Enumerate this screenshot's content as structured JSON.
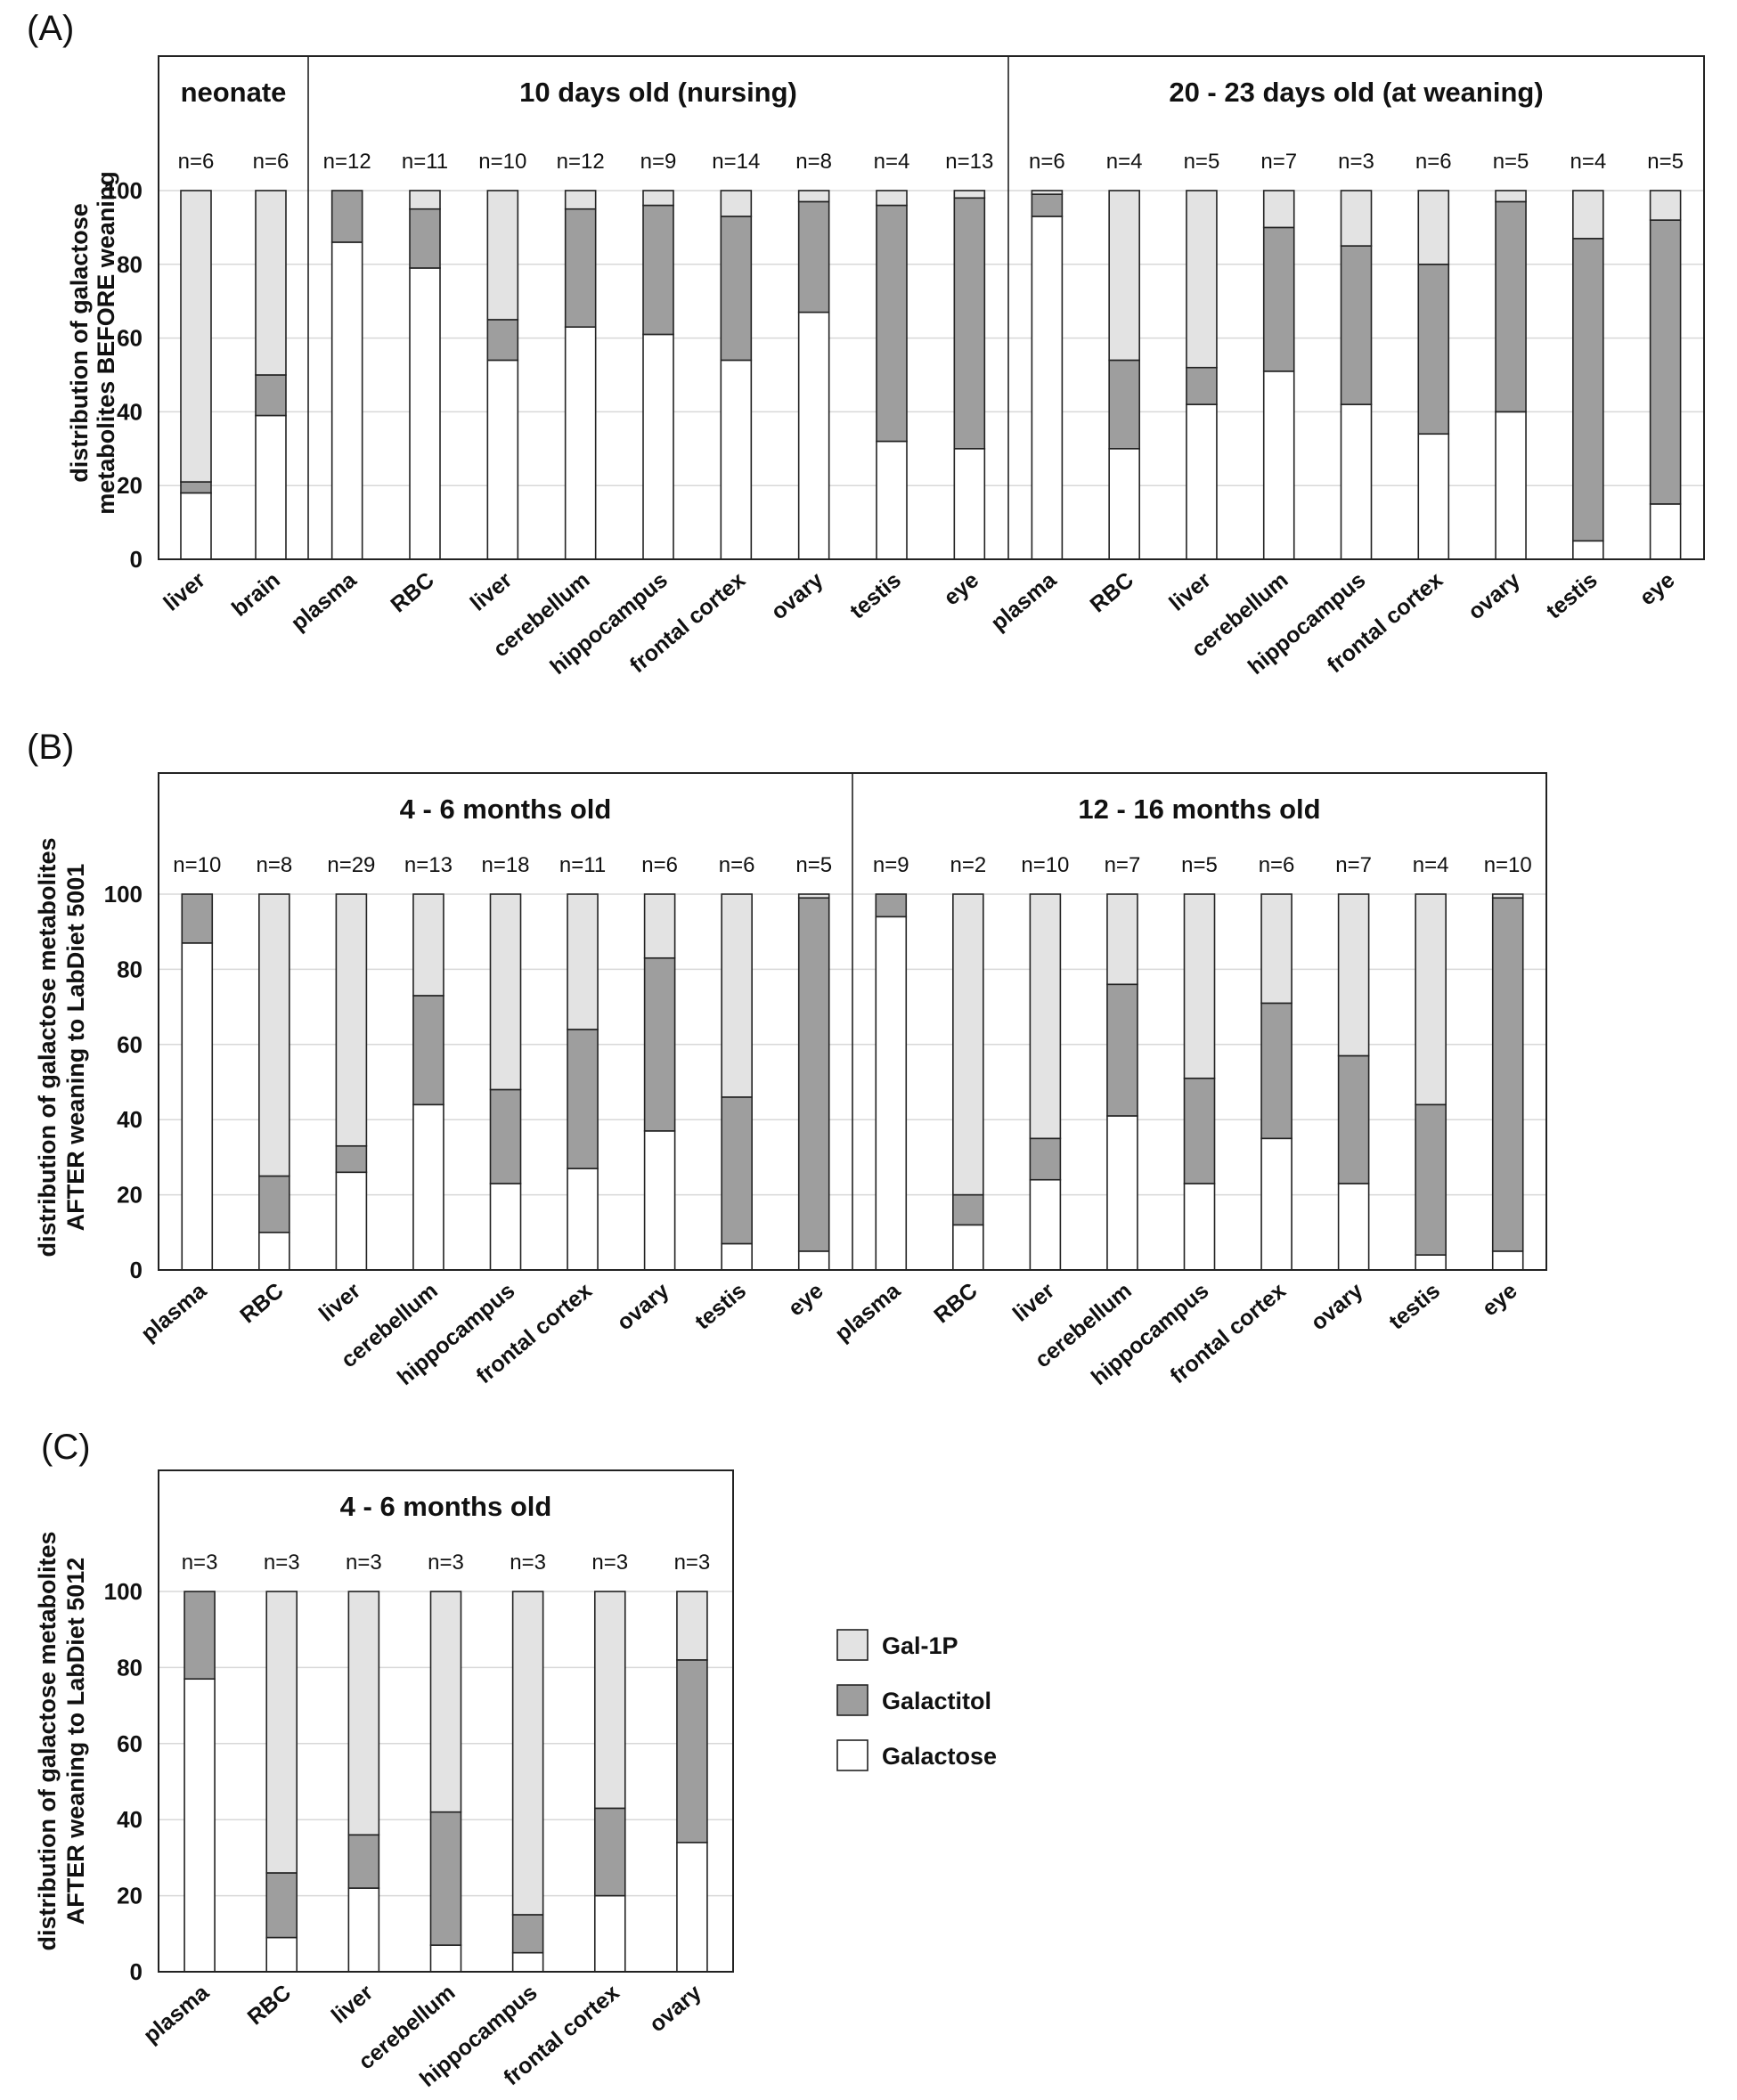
{
  "colors": {
    "gal1p": "#e3e3e3",
    "galactitol": "#9e9e9e",
    "galactose": "#ffffff"
  },
  "chart_data": [
    {
      "type": "bar",
      "stacked": true,
      "panel_label": "(A)",
      "ylabel": "distribution of galactose metabolites BEFORE weaning",
      "ylabel_lines": [
        "distribution of galactose",
        "metabolites BEFORE weaning"
      ],
      "ylim": [
        0,
        100
      ],
      "yticks": [
        0,
        20,
        40,
        60,
        80,
        100
      ],
      "grid": true,
      "groups": [
        {
          "title": "neonate",
          "categories": [
            "liver",
            "brain"
          ],
          "n": [
            "n=6",
            "n=6"
          ],
          "galactose": [
            18,
            39
          ],
          "galactitol": [
            3,
            11
          ],
          "gal1p": [
            79,
            50
          ]
        },
        {
          "title": "10 days old (nursing)",
          "categories": [
            "plasma",
            "RBC",
            "liver",
            "cerebellum",
            "hippocampus",
            "frontal cortex",
            "ovary",
            "testis",
            "eye"
          ],
          "n": [
            "n=12",
            "n=11",
            "n=10",
            "n=12",
            "n=9",
            "n=14",
            "n=8",
            "n=4",
            "n=13"
          ],
          "galactose": [
            86,
            79,
            54,
            63,
            61,
            54,
            67,
            32,
            30
          ],
          "galactitol": [
            14,
            16,
            11,
            32,
            35,
            39,
            30,
            64,
            68
          ],
          "gal1p": [
            0,
            5,
            35,
            5,
            4,
            7,
            3,
            4,
            2
          ]
        },
        {
          "title": "20 - 23 days old (at weaning)",
          "categories": [
            "plasma",
            "RBC",
            "liver",
            "cerebellum",
            "hippocampus",
            "frontal cortex",
            "ovary",
            "testis",
            "eye"
          ],
          "n": [
            "n=6",
            "n=4",
            "n=5",
            "n=7",
            "n=3",
            "n=6",
            "n=5",
            "n=4",
            "n=5"
          ],
          "galactose": [
            93,
            30,
            42,
            51,
            42,
            34,
            40,
            5,
            15
          ],
          "galactitol": [
            6,
            24,
            10,
            39,
            43,
            46,
            57,
            82,
            77
          ],
          "gal1p": [
            1,
            46,
            48,
            10,
            15,
            20,
            3,
            13,
            8
          ]
        }
      ]
    },
    {
      "type": "bar",
      "stacked": true,
      "panel_label": "(B)",
      "ylabel": "distribution of galactose metabolites AFTER weaning to LabDiet 5001",
      "ylabel_lines": [
        "distribution of galactose metabolites",
        "AFTER weaning to LabDiet 5001"
      ],
      "ylim": [
        0,
        100
      ],
      "yticks": [
        0,
        20,
        40,
        60,
        80,
        100
      ],
      "grid": true,
      "groups": [
        {
          "title": "4 - 6 months old",
          "categories": [
            "plasma",
            "RBC",
            "liver",
            "cerebellum",
            "hippocampus",
            "frontal cortex",
            "ovary",
            "testis",
            "eye"
          ],
          "n": [
            "n=10",
            "n=8",
            "n=29",
            "n=13",
            "n=18",
            "n=11",
            "n=6",
            "n=6",
            "n=5"
          ],
          "galactose": [
            87,
            10,
            26,
            44,
            23,
            27,
            37,
            7,
            5
          ],
          "galactitol": [
            13,
            15,
            7,
            29,
            25,
            37,
            46,
            39,
            94
          ],
          "gal1p": [
            0,
            75,
            67,
            27,
            52,
            36,
            17,
            54,
            1
          ]
        },
        {
          "title": "12 - 16 months old",
          "categories": [
            "plasma",
            "RBC",
            "liver",
            "cerebellum",
            "hippocampus",
            "frontal cortex",
            "ovary",
            "testis",
            "eye"
          ],
          "n": [
            "n=9",
            "n=2",
            "n=10",
            "n=7",
            "n=5",
            "n=6",
            "n=7",
            "n=4",
            "n=10"
          ],
          "galactose": [
            94,
            12,
            24,
            41,
            23,
            35,
            23,
            4,
            5
          ],
          "galactitol": [
            6,
            8,
            11,
            35,
            28,
            36,
            34,
            40,
            94
          ],
          "gal1p": [
            0,
            80,
            65,
            24,
            49,
            29,
            43,
            56,
            1
          ]
        }
      ]
    },
    {
      "type": "bar",
      "stacked": true,
      "panel_label": "(C)",
      "ylabel": "distribution of galactose metabolites AFTER weaning to LabDiet 5012",
      "ylabel_lines": [
        "distribution of galactose metabolites",
        "AFTER weaning to LabDiet 5012"
      ],
      "ylim": [
        0,
        100
      ],
      "yticks": [
        0,
        20,
        40,
        60,
        80,
        100
      ],
      "grid": true,
      "groups": [
        {
          "title": "4 - 6 months old",
          "categories": [
            "plasma",
            "RBC",
            "liver",
            "cerebellum",
            "hippocampus",
            "frontal cortex",
            "ovary"
          ],
          "n": [
            "n=3",
            "n=3",
            "n=3",
            "n=3",
            "n=3",
            "n=3",
            "n=3"
          ],
          "galactose": [
            77,
            9,
            22,
            7,
            5,
            20,
            34
          ],
          "galactitol": [
            23,
            17,
            14,
            35,
            10,
            23,
            48
          ],
          "gal1p": [
            0,
            74,
            64,
            58,
            85,
            57,
            18
          ]
        }
      ]
    }
  ],
  "legend": {
    "placement": "right of panel C",
    "items": [
      {
        "label": "Gal-1P",
        "key": "gal1p"
      },
      {
        "label": "Galactitol",
        "key": "galactitol"
      },
      {
        "label": "Galactose",
        "key": "galactose"
      }
    ]
  }
}
